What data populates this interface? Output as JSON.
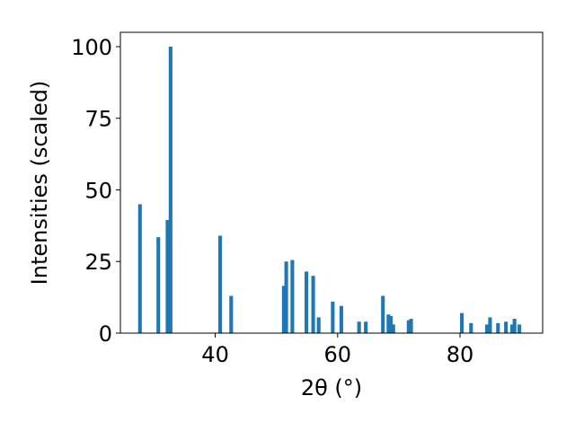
{
  "chart_data": {
    "type": "bar",
    "xlabel": "2θ (°)",
    "ylabel": "Intensities (scaled)",
    "xlim": [
      24.5,
      93.5
    ],
    "ylim": [
      0,
      105
    ],
    "xticks": [
      40,
      60,
      80
    ],
    "yticks": [
      0,
      25,
      50,
      75,
      100
    ],
    "bar_width": 0.6,
    "bar_color": "#1f77b4",
    "grid": false,
    "x": [
      27.7,
      30.7,
      32.2,
      32.7,
      40.8,
      42.6,
      51.2,
      51.6,
      52.6,
      54.9,
      56.0,
      56.9,
      59.2,
      60.6,
      63.5,
      64.6,
      67.4,
      68.3,
      68.7,
      69.1,
      71.6,
      72.0,
      80.3,
      81.8,
      84.4,
      84.9,
      86.2,
      87.5,
      88.5,
      88.9,
      89.7
    ],
    "values": [
      45,
      33.5,
      39.5,
      100,
      34,
      13,
      16.5,
      25,
      25.5,
      21.5,
      20,
      5.5,
      11,
      9.5,
      4,
      4,
      13,
      6.5,
      6,
      3,
      4.5,
      5,
      7,
      3.5,
      3,
      5.5,
      3.5,
      4,
      3,
      5,
      3
    ]
  }
}
